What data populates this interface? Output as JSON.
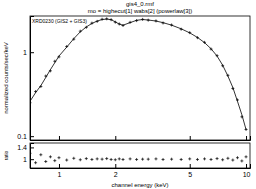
{
  "chart_data": [
    {
      "type": "scatter",
      "title": "gis4_0.rmf",
      "subtitle": "mo = highecut[1] wabs[2] (powerlaw[3])",
      "annotation": "XRD0230 (GIS2 + GIS3)",
      "y_label": "normalized counts/sec/keV",
      "log": true,
      "tick_labels": "y",
      "xlim": [
        0.7,
        10.5
      ],
      "ylim": [
        0.09,
        2.7
      ],
      "xticks": [
        1,
        2,
        5,
        10
      ],
      "yticks": [
        0.1,
        1
      ],
      "x": [
        0.7,
        0.75,
        0.8,
        0.85,
        0.9,
        0.95,
        1.0,
        1.1,
        1.2,
        1.3,
        1.4,
        1.5,
        1.6,
        1.7,
        1.8,
        1.9,
        2.0,
        2.1,
        2.2,
        2.4,
        2.6,
        2.8,
        3.0,
        3.3,
        3.6,
        4.0,
        4.5,
        5.0,
        5.5,
        6.0,
        6.5,
        7.0,
        7.5,
        8.0,
        8.5,
        9.0,
        9.5,
        10
      ],
      "series": [
        {
          "type": "scatter",
          "color": "#000000",
          "marker": "cross",
          "values": [
            0.25,
            0.34,
            0.39,
            0.52,
            0.6,
            0.78,
            0.88,
            1.17,
            1.43,
            1.78,
            1.98,
            2.22,
            2.33,
            2.47,
            2.5,
            2.44,
            2.28,
            2.17,
            2.08,
            2.27,
            2.38,
            2.46,
            2.41,
            2.36,
            2.23,
            2.11,
            1.88,
            1.71,
            1.49,
            1.31,
            1.09,
            0.91,
            0.69,
            0.53,
            0.37,
            0.27,
            0.17,
            0.12
          ]
        },
        {
          "type": "line",
          "color": "#000000",
          "line_style": "solid",
          "values": [
            0.26,
            0.33,
            0.4,
            0.5,
            0.62,
            0.75,
            0.9,
            1.15,
            1.45,
            1.75,
            2.0,
            2.2,
            2.35,
            2.45,
            2.48,
            2.44,
            2.3,
            2.16,
            2.1,
            2.25,
            2.4,
            2.45,
            2.42,
            2.35,
            2.25,
            2.1,
            1.9,
            1.7,
            1.5,
            1.3,
            1.1,
            0.9,
            0.7,
            0.52,
            0.38,
            0.26,
            0.18,
            0.12
          ]
        }
      ]
    },
    {
      "type": "scatter",
      "x_label": "channel energy (keV)",
      "y_label": "ratio",
      "log": "x",
      "xlim": [
        0.7,
        10.5
      ],
      "ylim": [
        0.7,
        1.55
      ],
      "xticks": [
        1,
        2,
        5,
        10
      ],
      "yticks": [
        1,
        1.4
      ],
      "x": [
        0.7,
        0.75,
        0.8,
        0.85,
        0.9,
        0.95,
        1.0,
        1.1,
        1.2,
        1.3,
        1.4,
        1.5,
        1.6,
        1.7,
        1.8,
        1.9,
        2.0,
        2.1,
        2.2,
        2.4,
        2.6,
        2.8,
        3.0,
        3.3,
        3.6,
        4.0,
        4.5,
        5.0,
        5.5,
        6.0,
        6.5,
        7.0,
        7.5,
        8.0,
        8.5,
        9.0,
        9.5,
        10
      ],
      "series": [
        {
          "type": "scatter",
          "color": "#000000",
          "marker": "cross",
          "values": [
            1.2,
            0.88,
            1.15,
            0.92,
            1.08,
            0.95,
            1.05,
            0.97,
            1.03,
            0.98,
            1.02,
            0.99,
            1.01,
            1.0,
            1.02,
            0.99,
            0.98,
            1.01,
            0.99,
            1.01,
            0.99,
            1.0,
            1.0,
            1.01,
            0.99,
            1.0,
            0.99,
            1.01,
            0.99,
            1.01,
            0.99,
            1.02,
            0.98,
            1.03,
            0.97,
            1.05,
            0.94,
            1.08
          ]
        }
      ]
    }
  ]
}
